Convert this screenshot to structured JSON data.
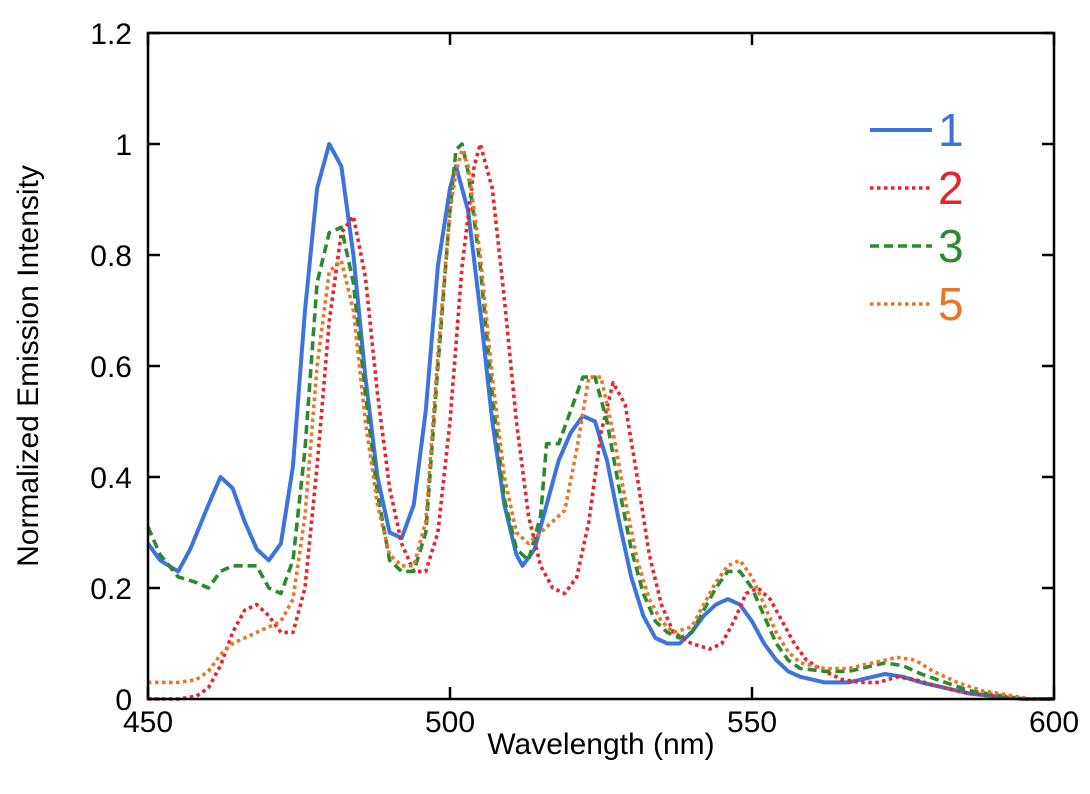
{
  "chart_data": {
    "type": "line",
    "title": "",
    "xlabel": "Wavelength (nm)",
    "ylabel": "Normalized Emission Intensity",
    "xlim": [
      450,
      600
    ],
    "ylim": [
      0,
      1.2
    ],
    "xticks": [
      450,
      500,
      550,
      600
    ],
    "yticks": [
      0,
      0.2,
      0.4,
      0.6,
      0.8,
      1,
      1.2
    ],
    "xtick_labels": [
      "450",
      "500",
      "550",
      "600"
    ],
    "ytick_labels": [
      "0",
      "0.2",
      "0.4",
      "0.6",
      "0.8",
      "1",
      "1.2"
    ],
    "grid": false,
    "legend_position": "top-right",
    "series": [
      {
        "name": "1",
        "color": "#3b73e0",
        "dash": "solid",
        "points": [
          [
            450,
            0.28
          ],
          [
            452,
            0.25
          ],
          [
            455,
            0.23
          ],
          [
            457,
            0.27
          ],
          [
            460,
            0.35
          ],
          [
            462,
            0.4
          ],
          [
            464,
            0.38
          ],
          [
            466,
            0.32
          ],
          [
            468,
            0.27
          ],
          [
            470,
            0.25
          ],
          [
            472,
            0.28
          ],
          [
            474,
            0.42
          ],
          [
            476,
            0.7
          ],
          [
            478,
            0.92
          ],
          [
            480,
            1.0
          ],
          [
            482,
            0.96
          ],
          [
            484,
            0.8
          ],
          [
            486,
            0.58
          ],
          [
            488,
            0.4
          ],
          [
            490,
            0.3
          ],
          [
            492,
            0.29
          ],
          [
            494,
            0.35
          ],
          [
            496,
            0.52
          ],
          [
            498,
            0.78
          ],
          [
            500,
            0.92
          ],
          [
            501,
            0.96
          ],
          [
            503,
            0.88
          ],
          [
            505,
            0.7
          ],
          [
            507,
            0.5
          ],
          [
            509,
            0.35
          ],
          [
            511,
            0.26
          ],
          [
            512,
            0.24
          ],
          [
            514,
            0.27
          ],
          [
            516,
            0.35
          ],
          [
            518,
            0.43
          ],
          [
            520,
            0.48
          ],
          [
            522,
            0.51
          ],
          [
            524,
            0.5
          ],
          [
            526,
            0.43
          ],
          [
            528,
            0.32
          ],
          [
            530,
            0.22
          ],
          [
            532,
            0.15
          ],
          [
            534,
            0.11
          ],
          [
            536,
            0.1
          ],
          [
            538,
            0.1
          ],
          [
            540,
            0.12
          ],
          [
            542,
            0.15
          ],
          [
            544,
            0.17
          ],
          [
            546,
            0.18
          ],
          [
            548,
            0.17
          ],
          [
            550,
            0.14
          ],
          [
            552,
            0.1
          ],
          [
            554,
            0.07
          ],
          [
            556,
            0.05
          ],
          [
            558,
            0.04
          ],
          [
            562,
            0.03
          ],
          [
            566,
            0.03
          ],
          [
            570,
            0.04
          ],
          [
            572,
            0.045
          ],
          [
            575,
            0.04
          ],
          [
            578,
            0.03
          ],
          [
            582,
            0.02
          ],
          [
            586,
            0.01
          ],
          [
            590,
            0.005
          ],
          [
            595,
            0.0
          ],
          [
            600,
            0.0
          ]
        ]
      },
      {
        "name": "2",
        "color": "#e8232a",
        "dash": "dotted",
        "points": [
          [
            450,
            0.0
          ],
          [
            455,
            0.0
          ],
          [
            458,
            0.005
          ],
          [
            460,
            0.02
          ],
          [
            462,
            0.06
          ],
          [
            464,
            0.12
          ],
          [
            466,
            0.16
          ],
          [
            468,
            0.17
          ],
          [
            470,
            0.15
          ],
          [
            472,
            0.12
          ],
          [
            474,
            0.12
          ],
          [
            476,
            0.2
          ],
          [
            478,
            0.42
          ],
          [
            480,
            0.68
          ],
          [
            482,
            0.84
          ],
          [
            484,
            0.87
          ],
          [
            486,
            0.76
          ],
          [
            488,
            0.55
          ],
          [
            490,
            0.38
          ],
          [
            492,
            0.28
          ],
          [
            494,
            0.23
          ],
          [
            496,
            0.23
          ],
          [
            498,
            0.3
          ],
          [
            500,
            0.5
          ],
          [
            502,
            0.78
          ],
          [
            504,
            0.96
          ],
          [
            505,
            1.0
          ],
          [
            507,
            0.92
          ],
          [
            509,
            0.72
          ],
          [
            511,
            0.5
          ],
          [
            513,
            0.33
          ],
          [
            515,
            0.24
          ],
          [
            517,
            0.2
          ],
          [
            519,
            0.19
          ],
          [
            521,
            0.22
          ],
          [
            523,
            0.32
          ],
          [
            525,
            0.48
          ],
          [
            527,
            0.57
          ],
          [
            529,
            0.53
          ],
          [
            531,
            0.4
          ],
          [
            533,
            0.26
          ],
          [
            535,
            0.17
          ],
          [
            537,
            0.12
          ],
          [
            540,
            0.1
          ],
          [
            543,
            0.09
          ],
          [
            545,
            0.1
          ],
          [
            547,
            0.14
          ],
          [
            549,
            0.19
          ],
          [
            551,
            0.2
          ],
          [
            553,
            0.18
          ],
          [
            555,
            0.14
          ],
          [
            557,
            0.1
          ],
          [
            559,
            0.07
          ],
          [
            562,
            0.05
          ],
          [
            565,
            0.035
          ],
          [
            568,
            0.03
          ],
          [
            571,
            0.03
          ],
          [
            574,
            0.04
          ],
          [
            577,
            0.035
          ],
          [
            580,
            0.025
          ],
          [
            585,
            0.012
          ],
          [
            590,
            0.005
          ],
          [
            595,
            0.0
          ],
          [
            600,
            0.0
          ]
        ]
      },
      {
        "name": "3",
        "color": "#2a8a2e",
        "dash": "dashed",
        "points": [
          [
            450,
            0.31
          ],
          [
            452,
            0.26
          ],
          [
            455,
            0.22
          ],
          [
            458,
            0.21
          ],
          [
            460,
            0.2
          ],
          [
            462,
            0.23
          ],
          [
            464,
            0.24
          ],
          [
            466,
            0.24
          ],
          [
            468,
            0.24
          ],
          [
            470,
            0.2
          ],
          [
            472,
            0.19
          ],
          [
            474,
            0.25
          ],
          [
            476,
            0.45
          ],
          [
            478,
            0.75
          ],
          [
            480,
            0.84
          ],
          [
            482,
            0.85
          ],
          [
            484,
            0.75
          ],
          [
            486,
            0.55
          ],
          [
            488,
            0.37
          ],
          [
            490,
            0.25
          ],
          [
            492,
            0.23
          ],
          [
            494,
            0.23
          ],
          [
            496,
            0.3
          ],
          [
            498,
            0.6
          ],
          [
            500,
            0.88
          ],
          [
            501,
            0.99
          ],
          [
            502,
            1.0
          ],
          [
            503,
            0.95
          ],
          [
            505,
            0.78
          ],
          [
            507,
            0.55
          ],
          [
            509,
            0.36
          ],
          [
            511,
            0.27
          ],
          [
            513,
            0.25
          ],
          [
            515,
            0.33
          ],
          [
            516,
            0.46
          ],
          [
            518,
            0.46
          ],
          [
            520,
            0.52
          ],
          [
            522,
            0.58
          ],
          [
            524,
            0.58
          ],
          [
            526,
            0.5
          ],
          [
            528,
            0.38
          ],
          [
            530,
            0.27
          ],
          [
            532,
            0.19
          ],
          [
            534,
            0.14
          ],
          [
            536,
            0.12
          ],
          [
            538,
            0.11
          ],
          [
            540,
            0.12
          ],
          [
            542,
            0.16
          ],
          [
            544,
            0.2
          ],
          [
            546,
            0.23
          ],
          [
            548,
            0.23
          ],
          [
            550,
            0.2
          ],
          [
            552,
            0.15
          ],
          [
            554,
            0.1
          ],
          [
            556,
            0.07
          ],
          [
            558,
            0.055
          ],
          [
            562,
            0.05
          ],
          [
            566,
            0.05
          ],
          [
            570,
            0.06
          ],
          [
            572,
            0.065
          ],
          [
            575,
            0.06
          ],
          [
            578,
            0.045
          ],
          [
            582,
            0.03
          ],
          [
            586,
            0.015
          ],
          [
            590,
            0.008
          ],
          [
            595,
            0.0
          ],
          [
            600,
            0.0
          ]
        ]
      },
      {
        "name": "5",
        "color": "#e8752a",
        "dash": "dotted",
        "points": [
          [
            450,
            0.03
          ],
          [
            455,
            0.03
          ],
          [
            458,
            0.035
          ],
          [
            460,
            0.05
          ],
          [
            462,
            0.08
          ],
          [
            464,
            0.1
          ],
          [
            466,
            0.11
          ],
          [
            468,
            0.12
          ],
          [
            470,
            0.13
          ],
          [
            472,
            0.14
          ],
          [
            474,
            0.18
          ],
          [
            476,
            0.33
          ],
          [
            478,
            0.6
          ],
          [
            480,
            0.77
          ],
          [
            482,
            0.79
          ],
          [
            484,
            0.7
          ],
          [
            486,
            0.5
          ],
          [
            488,
            0.35
          ],
          [
            490,
            0.26
          ],
          [
            492,
            0.24
          ],
          [
            494,
            0.24
          ],
          [
            496,
            0.32
          ],
          [
            498,
            0.62
          ],
          [
            500,
            0.88
          ],
          [
            501,
            0.95
          ],
          [
            502,
            0.99
          ],
          [
            503,
            0.96
          ],
          [
            505,
            0.8
          ],
          [
            507,
            0.58
          ],
          [
            509,
            0.4
          ],
          [
            511,
            0.3
          ],
          [
            513,
            0.28
          ],
          [
            515,
            0.3
          ],
          [
            517,
            0.32
          ],
          [
            519,
            0.34
          ],
          [
            521,
            0.45
          ],
          [
            523,
            0.58
          ],
          [
            525,
            0.58
          ],
          [
            527,
            0.48
          ],
          [
            529,
            0.36
          ],
          [
            531,
            0.25
          ],
          [
            533,
            0.18
          ],
          [
            535,
            0.14
          ],
          [
            537,
            0.12
          ],
          [
            540,
            0.13
          ],
          [
            542,
            0.17
          ],
          [
            544,
            0.21
          ],
          [
            546,
            0.24
          ],
          [
            548,
            0.25
          ],
          [
            550,
            0.22
          ],
          [
            552,
            0.17
          ],
          [
            554,
            0.12
          ],
          [
            556,
            0.085
          ],
          [
            558,
            0.065
          ],
          [
            562,
            0.055
          ],
          [
            566,
            0.055
          ],
          [
            570,
            0.065
          ],
          [
            574,
            0.075
          ],
          [
            577,
            0.07
          ],
          [
            580,
            0.05
          ],
          [
            584,
            0.03
          ],
          [
            588,
            0.015
          ],
          [
            592,
            0.008
          ],
          [
            596,
            0.0
          ],
          [
            600,
            0.0
          ]
        ]
      }
    ]
  }
}
